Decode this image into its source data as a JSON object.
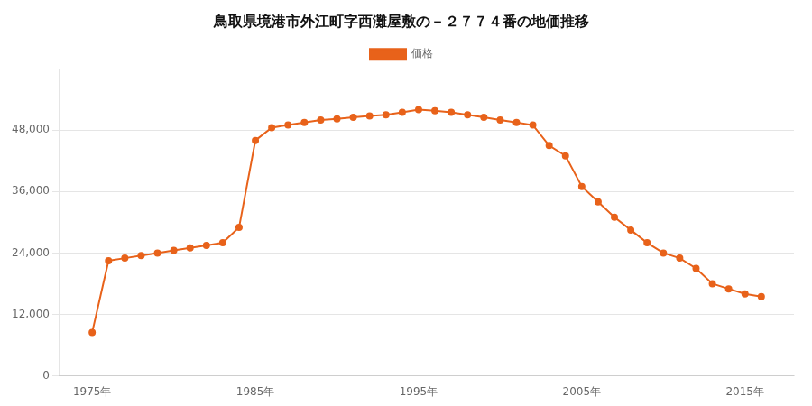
{
  "chart_data": {
    "type": "line",
    "title": "鳥取県境港市外江町字西灘屋敷の－２７７４番の地価推移",
    "x": [
      1975,
      1976,
      1977,
      1978,
      1979,
      1980,
      1981,
      1982,
      1983,
      1984,
      1985,
      1986,
      1987,
      1988,
      1989,
      1990,
      1991,
      1992,
      1993,
      1994,
      1995,
      1996,
      1997,
      1998,
      1999,
      2000,
      2001,
      2002,
      2003,
      2004,
      2005,
      2006,
      2007,
      2008,
      2009,
      2010,
      2011,
      2012,
      2013,
      2014,
      2015,
      2016
    ],
    "series": [
      {
        "name": "価格",
        "color": "#E8621A",
        "marker": "circle",
        "values": [
          8500,
          22500,
          23000,
          23500,
          24000,
          24500,
          25000,
          25500,
          26000,
          29000,
          46000,
          48500,
          49000,
          49500,
          50000,
          50200,
          50500,
          50800,
          51000,
          51500,
          52000,
          51800,
          51500,
          51000,
          50500,
          50000,
          49500,
          49000,
          45000,
          43000,
          37000,
          34000,
          31000,
          28500,
          26000,
          24000,
          23000,
          21000,
          18000,
          17000,
          16000,
          15500
        ]
      }
    ],
    "xlim": [
      1973,
      2018
    ],
    "xticks": [
      {
        "value": 1975,
        "label": "1975年"
      },
      {
        "value": 1985,
        "label": "1985年"
      },
      {
        "value": 1995,
        "label": "1995年"
      },
      {
        "value": 2005,
        "label": "2005年"
      },
      {
        "value": 2015,
        "label": "2015年"
      }
    ],
    "ylim": [
      0,
      60000
    ],
    "yticks": [
      0,
      {
        "value": 12000,
        "label": "12,000"
      },
      {
        "value": 24000,
        "label": "24,000"
      },
      {
        "value": 36000,
        "label": "36,000"
      },
      {
        "value": 48000,
        "label": "48,000"
      }
    ],
    "grid": "y",
    "legend": "top"
  }
}
